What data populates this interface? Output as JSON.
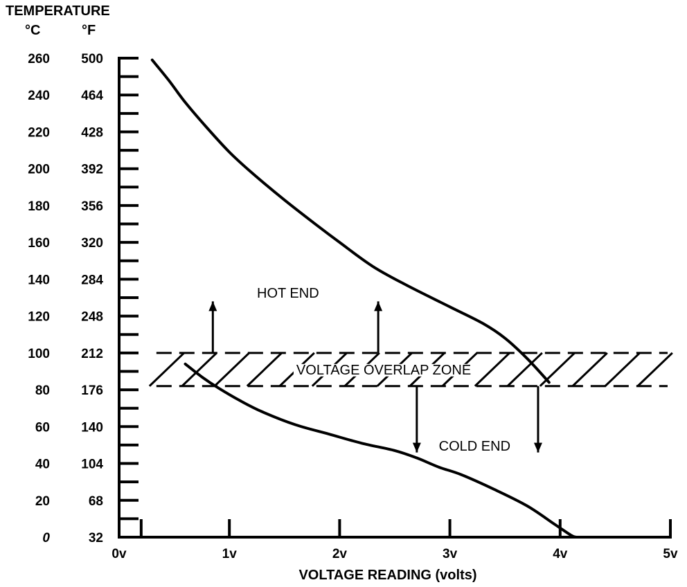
{
  "chart_data": {
    "type": "line",
    "header": "TEMPERATURE",
    "y_unit_left": "°C",
    "y_unit_right": "°F",
    "y_ticks_c": [
      "0",
      "20",
      "40",
      "60",
      "80",
      "100",
      "120",
      "140",
      "160",
      "180",
      "200",
      "220",
      "240",
      "260"
    ],
    "y_ticks_f": [
      "32",
      "68",
      "104",
      "140",
      "176",
      "212",
      "248",
      "284",
      "320",
      "356",
      "392",
      "428",
      "464",
      "500"
    ],
    "x_ticks": [
      "0v",
      "1v",
      "2v",
      "3v",
      "4v",
      "5v"
    ],
    "xlabel": "VOLTAGE READING (volts)",
    "xlim": [
      0,
      5
    ],
    "ylim": [
      0,
      260
    ],
    "y_minor_step": 10,
    "x_minor_ticks": [
      0.2,
      1,
      2,
      3,
      4,
      5
    ],
    "series": [
      {
        "x": [
          0.3,
          0.45,
          0.6,
          0.8,
          1.0,
          1.2,
          1.5,
          1.8,
          2.0,
          2.3,
          2.6,
          3.0,
          3.3,
          3.5,
          3.7,
          3.9
        ],
        "y": [
          259,
          248,
          236,
          222,
          209,
          198,
          183,
          169,
          160,
          147,
          137,
          125,
          116,
          108,
          97,
          84
        ]
      },
      {
        "x": [
          0.6,
          0.75,
          0.9,
          1.1,
          1.3,
          1.6,
          1.9,
          2.2,
          2.5,
          2.7,
          2.9,
          3.1,
          3.4,
          3.7,
          3.95,
          4.1,
          4.15
        ],
        "y": [
          94,
          87,
          81,
          74,
          68,
          61,
          56,
          51,
          47,
          43,
          38,
          34,
          26,
          17,
          7,
          1,
          0
        ]
      }
    ],
    "zone": {
      "label": "VOLTAGE OVERLAP ZONE",
      "y_range": [
        82,
        100
      ],
      "x_range": [
        0.2,
        5
      ]
    },
    "annotations": [
      {
        "text": "HOT END",
        "x": 1.25,
        "y": 130
      },
      {
        "text": "COLD END",
        "x": 2.9,
        "y": 47
      }
    ],
    "arrows": [
      {
        "x": 0.85,
        "y_from": 100,
        "y_to": 128,
        "dir": "up"
      },
      {
        "x": 2.35,
        "y_from": 100,
        "y_to": 128,
        "dir": "up"
      },
      {
        "x": 2.7,
        "y_from": 82,
        "y_to": 46,
        "dir": "down"
      },
      {
        "x": 3.8,
        "y_from": 82,
        "y_to": 46,
        "dir": "down"
      }
    ],
    "grid": false
  }
}
